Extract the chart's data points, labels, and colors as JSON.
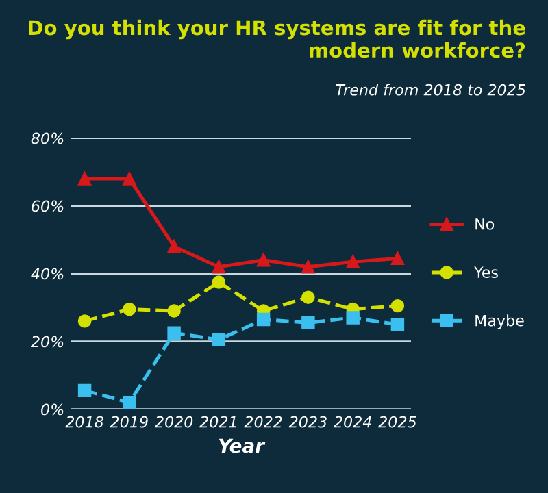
{
  "chart_data": {
    "type": "line",
    "title": "Do you think your HR systems are fit for the\nmodern workforce?",
    "subtitle": "Trend from 2018 to 2025",
    "xlabel": "Year",
    "categories": [
      "2018",
      "2019",
      "2020",
      "2021",
      "2022",
      "2023",
      "2024",
      "2025"
    ],
    "series": [
      {
        "name": "No",
        "color": "#d7191c",
        "marker": "triangle",
        "line_style": "solid",
        "values": [
          68,
          68,
          48,
          42,
          44,
          42,
          43.5,
          44.5
        ]
      },
      {
        "name": "Yes",
        "color": "#d4e000",
        "marker": "circle",
        "line_style": "dashed",
        "values": [
          26,
          29.5,
          29,
          37.5,
          29,
          33,
          29.5,
          30.5
        ]
      },
      {
        "name": "Maybe",
        "color": "#3bbfef",
        "marker": "square",
        "line_style": "dashed",
        "values": [
          5.5,
          2,
          22.5,
          20.5,
          26.5,
          25.5,
          27,
          25
        ]
      }
    ],
    "ylim": [
      0,
      80
    ],
    "yticks": [
      {
        "value": 0,
        "label": "0%"
      },
      {
        "value": 20,
        "label": "20%"
      },
      {
        "value": 40,
        "label": "40%"
      },
      {
        "value": 60,
        "label": "60%"
      },
      {
        "value": 80,
        "label": "80%"
      }
    ],
    "grid": "y",
    "legend": "right"
  }
}
